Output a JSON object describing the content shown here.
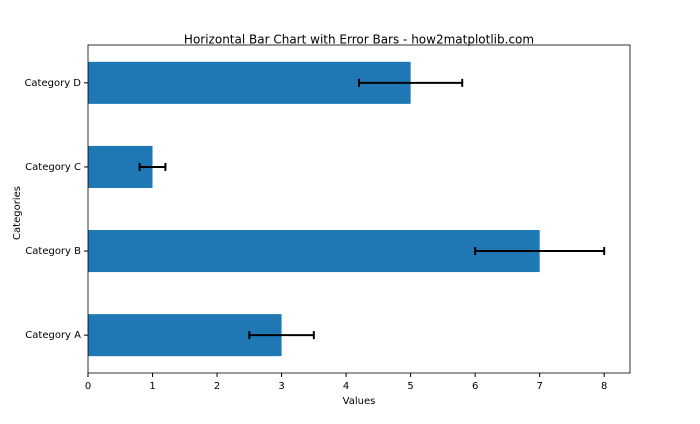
{
  "chart_data": {
    "type": "barh",
    "title": "Horizontal Bar Chart with Error Bars - how2matplotlib.com",
    "x_label": "Values",
    "y_label": "Categories",
    "categories": [
      "Category A",
      "Category B",
      "Category C",
      "Category D"
    ],
    "values": [
      3,
      7,
      1,
      5
    ],
    "errors": [
      0.5,
      1,
      0.2,
      0.8
    ],
    "color": "#1f77b4",
    "error_color": "#000000",
    "xlim": [
      0,
      8.4
    ],
    "xticks": [
      0,
      1,
      2,
      3,
      4,
      5,
      6,
      7,
      8
    ]
  }
}
